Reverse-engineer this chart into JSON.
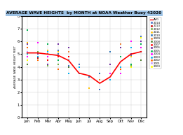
{
  "title": "AVERAGE WAVE HEIGHTS  by MONTH at NOAA Weather Buoy 42020",
  "ylabel": "AVERAGE WAVE HEIGHT FEET",
  "months": [
    "Jan",
    "Feb",
    "Mar",
    "Apr",
    "May",
    "Jun",
    "Jul",
    "Aug",
    "Sep",
    "Oct",
    "Nov",
    "Dec"
  ],
  "avg_line": [
    5.1,
    5.1,
    5.0,
    4.9,
    4.5,
    3.5,
    3.3,
    2.7,
    3.2,
    4.4,
    5.0,
    5.2
  ],
  "ylim": [
    0,
    8
  ],
  "yticks": [
    0,
    1,
    2,
    3,
    4,
    5,
    6,
    7,
    8
  ],
  "years": [
    2014,
    2013,
    2012,
    2011,
    2010,
    2009,
    2008,
    2007,
    2006,
    2005,
    2004,
    2003,
    2002,
    2001,
    2000
  ],
  "year_colors": [
    "#4472C4",
    "#C00000",
    "#70AD47",
    "#FFC000",
    "#2E75B6",
    "#ED7D31",
    "#548235",
    "#FF0000",
    "#7030A0",
    "#00B050",
    "#FF00FF",
    "#00B0F0",
    "#FF6600",
    "#CC99FF",
    "#FFFF00"
  ],
  "scatter_data": {
    "2014": [
      5.8,
      5.2,
      5.8,
      5.3,
      4.1,
      4.2,
      null,
      2.2,
      null,
      null,
      4.9,
      6.4
    ],
    "2013": [
      null,
      4.7,
      null,
      4.2,
      3.5,
      null,
      3.2,
      null,
      null,
      null,
      null,
      6.0
    ],
    "2012": [
      null,
      5.2,
      4.1,
      4.2,
      3.5,
      null,
      null,
      null,
      null,
      null,
      4.1,
      5.5
    ],
    "2011": [
      5.9,
      5.9,
      5.3,
      5.2,
      4.0,
      null,
      2.3,
      3.5,
      null,
      3.5,
      4.8,
      null
    ],
    "2010": [
      5.2,
      5.0,
      5.0,
      5.0,
      4.5,
      3.5,
      3.2,
      3.5,
      5.2,
      4.0,
      5.0,
      5.2
    ],
    "2009": [
      5.0,
      5.9,
      5.0,
      4.8,
      5.2,
      null,
      null,
      3.0,
      3.5,
      5.8,
      5.0,
      6.0
    ],
    "2008": [
      4.2,
      4.5,
      4.5,
      4.5,
      4.0,
      null,
      null,
      null,
      null,
      null,
      null,
      4.5
    ],
    "2007": [
      5.2,
      4.8,
      4.5,
      4.8,
      4.8,
      null,
      null,
      null,
      null,
      null,
      null,
      null
    ],
    "2006": [
      5.8,
      5.0,
      4.2,
      5.8,
      5.5,
      null,
      null,
      null,
      4.2,
      5.5,
      5.0,
      6.0
    ],
    "2005": [
      6.9,
      4.5,
      5.8,
      4.5,
      null,
      null,
      null,
      null,
      null,
      4.8,
      4.2,
      5.8
    ],
    "2004": [
      4.8,
      5.9,
      4.8,
      null,
      null,
      null,
      null,
      null,
      3.5,
      3.5,
      6.0,
      5.5
    ],
    "2003": [
      5.0,
      4.8,
      5.2,
      3.8,
      3.5,
      4.0,
      null,
      null,
      3.0,
      4.0,
      5.5,
      null
    ],
    "2002": [
      5.5,
      4.5,
      null,
      3.8,
      null,
      null,
      null,
      null,
      null,
      3.8,
      null,
      null
    ],
    "2001": [
      5.2,
      null,
      null,
      null,
      null,
      null,
      null,
      null,
      null,
      null,
      null,
      null
    ],
    "2000": [
      4.5,
      null,
      null,
      null,
      null,
      null,
      null,
      null,
      null,
      null,
      4.0,
      6.3
    ]
  },
  "avg_color": "#FF0000",
  "title_bg": "#9DC3E6",
  "background_color": "#FFFFFF"
}
